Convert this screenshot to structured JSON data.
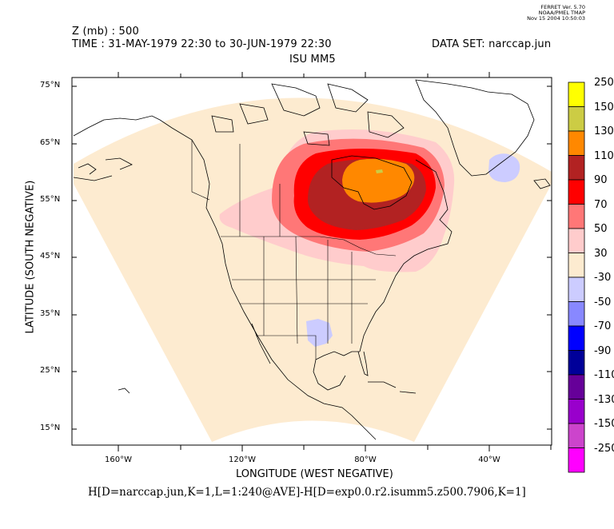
{
  "header": {
    "ferret": [
      "FERRET Ver. 5.70",
      "NOAA/PMEL TMAP",
      "Nov 15 2004 10:50:03"
    ],
    "variable": "Z (mb) : 500",
    "time": "TIME : 31-MAY-1979 22:30 to 30-JUN-1979 22:30",
    "dataset": "DATA SET: narccap.jun",
    "model": "ISU MM5"
  },
  "axes": {
    "y_title": "LATITUDE (SOUTH NEGATIVE)",
    "x_title": "LONGITUDE (WEST NEGATIVE)",
    "y_ticks": [
      "75°N",
      "65°N",
      "55°N",
      "45°N",
      "35°N",
      "25°N",
      "15°N"
    ],
    "x_ticks": [
      "160°W",
      "120°W",
      "80°W",
      "40°W"
    ]
  },
  "formula": "H[D=narccap.jun,K=1,L=1:240@AVE]-H[D=exp0.0.r2.isumm5.z500.7906,K=1]",
  "colorbar": {
    "labels": [
      "250",
      "150",
      "130",
      "110",
      "90",
      "70",
      "50",
      "30",
      "-30",
      "-50",
      "-70",
      "-90",
      "-110",
      "-130",
      "-150",
      "-250"
    ],
    "colors": [
      "#ffff00",
      "#cccc44",
      "#ff8800",
      "#b22222",
      "#ff0000",
      "#ff7777",
      "#ffcccc",
      "#fdebd0",
      "#ccccff",
      "#8888ff",
      "#0000ff",
      "#000099",
      "#660099",
      "#9900cc",
      "#cc44cc",
      "#ff00ff"
    ]
  },
  "colors": {
    "plus30": "#fdebd0",
    "plus50": "#ffcccc",
    "plus70": "#ff7777",
    "plus90": "#ff0000",
    "plus110": "#b22222",
    "plus130": "#ff8800",
    "plus150": "#cccc44",
    "minus30": "#ccccff"
  }
}
